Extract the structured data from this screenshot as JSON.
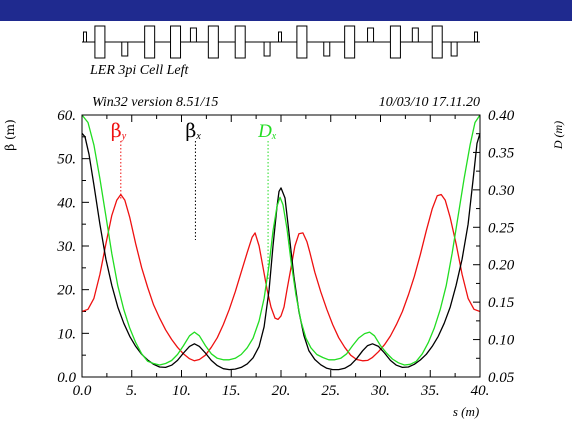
{
  "chart_data": {
    "type": "line",
    "title": "LER 3pi Cell Left",
    "header_left": "Win32 version 8.51/15",
    "header_right": "10/03/10  17.11.20",
    "xlabel": "s (m)",
    "ylabel_left": "β (m)",
    "ylabel_right": "D (m)",
    "xlim": [
      0,
      40
    ],
    "ylim_left": [
      0,
      60
    ],
    "ylim_right": [
      0.05,
      0.4
    ],
    "x_ticks": [
      "0.0",
      "5.",
      "10.",
      "15.",
      "20.",
      "25.",
      "30.",
      "35.",
      "40."
    ],
    "y_ticks_left": [
      "0.0",
      "10.",
      "20.",
      "30.",
      "40.",
      "50.",
      "60."
    ],
    "y_ticks_right": [
      "0.05",
      "0.10",
      "0.15",
      "0.20",
      "0.25",
      "0.30",
      "0.35",
      "0.40"
    ],
    "legend": [
      {
        "symbol": "β",
        "sub": "y",
        "color": "#ee1111",
        "marker_x": 3.9
      },
      {
        "symbol": "β",
        "sub": "x",
        "color": "#000000",
        "marker_x": 11.4
      },
      {
        "symbol": "D",
        "sub": "x",
        "color": "#22dd22",
        "marker_x": 18.7
      }
    ],
    "series": [
      {
        "key": "beta_y",
        "axis": "left",
        "color": "#ee1111",
        "x": [
          0.0,
          0.6,
          1.2,
          1.8,
          2.4,
          3.0,
          3.5,
          3.9,
          4.3,
          4.8,
          5.4,
          6.0,
          6.6,
          7.2,
          7.8,
          8.4,
          9.0,
          9.6,
          10.2,
          10.8,
          11.3,
          11.8,
          12.4,
          13.0,
          13.6,
          14.2,
          14.8,
          15.4,
          16.0,
          16.6,
          17.1,
          17.4,
          17.8,
          18.2,
          18.6,
          19.0,
          19.4,
          19.7,
          20.0,
          20.3,
          20.6,
          21.0,
          21.4,
          21.8,
          22.2,
          22.6,
          22.9,
          23.4,
          24.0,
          24.6,
          25.2,
          25.8,
          26.4,
          27.0,
          27.6,
          28.2,
          28.7,
          29.2,
          29.8,
          30.4,
          31.0,
          31.6,
          32.2,
          32.8,
          33.4,
          34.0,
          34.6,
          35.2,
          35.7,
          36.1,
          36.5,
          37.0,
          37.6,
          38.2,
          38.8,
          39.4,
          40.0
        ],
        "values": [
          15.0,
          15.5,
          18.0,
          23.5,
          30.5,
          37.0,
          40.5,
          41.8,
          40.5,
          36.5,
          30.5,
          25.0,
          20.5,
          16.5,
          13.5,
          10.8,
          8.6,
          6.8,
          5.3,
          4.2,
          3.7,
          4.0,
          5.0,
          6.8,
          9.0,
          12.0,
          15.5,
          19.5,
          24.0,
          28.5,
          32.0,
          33.0,
          30.0,
          25.0,
          20.0,
          16.0,
          13.5,
          13.2,
          14.0,
          16.0,
          20.0,
          25.0,
          30.0,
          32.8,
          33.0,
          31.0,
          28.5,
          24.0,
          19.5,
          15.5,
          12.0,
          9.0,
          6.8,
          5.0,
          4.0,
          3.7,
          3.8,
          4.5,
          5.8,
          7.4,
          9.4,
          12.0,
          15.0,
          18.8,
          23.0,
          28.0,
          33.5,
          38.5,
          41.5,
          41.8,
          40.5,
          36.5,
          30.5,
          23.5,
          18.0,
          15.5,
          15.0
        ]
      },
      {
        "key": "beta_x",
        "axis": "left",
        "color": "#000000",
        "x": [
          0.0,
          0.3,
          0.7,
          1.2,
          1.8,
          2.4,
          3.0,
          3.6,
          4.2,
          4.8,
          5.4,
          6.0,
          6.6,
          7.2,
          7.8,
          8.4,
          9.0,
          9.6,
          10.2,
          10.8,
          11.3,
          11.8,
          12.4,
          13.0,
          13.6,
          14.2,
          14.8,
          15.4,
          16.0,
          16.6,
          17.2,
          17.8,
          18.3,
          18.8,
          19.2,
          19.6,
          19.8,
          20.0,
          20.4,
          20.8,
          21.3,
          21.8,
          22.3,
          22.8,
          23.4,
          24.0,
          24.6,
          25.2,
          25.8,
          26.4,
          27.0,
          27.6,
          28.2,
          28.7,
          29.2,
          29.8,
          30.4,
          31.0,
          31.6,
          32.2,
          32.8,
          33.4,
          34.0,
          34.6,
          35.2,
          35.8,
          36.4,
          37.0,
          37.6,
          38.2,
          38.8,
          39.3,
          39.7,
          40.0
        ],
        "values": [
          55.8,
          55.0,
          51.0,
          44.0,
          35.0,
          27.0,
          21.0,
          16.0,
          12.3,
          9.3,
          7.0,
          5.2,
          3.9,
          2.9,
          2.3,
          2.2,
          2.7,
          3.8,
          5.5,
          7.0,
          7.6,
          7.0,
          5.5,
          3.8,
          2.6,
          1.9,
          1.7,
          1.8,
          2.2,
          3.0,
          4.4,
          7.0,
          11.5,
          20.0,
          30.0,
          39.0,
          42.5,
          43.3,
          41.0,
          33.0,
          23.0,
          15.0,
          9.5,
          6.0,
          4.0,
          2.8,
          2.0,
          1.7,
          1.7,
          2.0,
          2.8,
          4.2,
          6.0,
          7.2,
          7.6,
          7.0,
          5.5,
          3.8,
          2.7,
          2.2,
          2.3,
          2.9,
          3.9,
          5.2,
          7.0,
          9.3,
          12.3,
          16.0,
          21.0,
          27.0,
          35.0,
          45.0,
          53.5,
          55.8
        ]
      },
      {
        "key": "d_x",
        "axis": "right",
        "color": "#22dd22",
        "x": [
          0.0,
          0.6,
          1.2,
          1.8,
          2.4,
          3.0,
          3.6,
          4.2,
          4.8,
          5.4,
          6.0,
          6.6,
          7.2,
          7.8,
          8.4,
          9.0,
          9.6,
          10.2,
          10.8,
          11.3,
          11.8,
          12.4,
          13.0,
          13.6,
          14.2,
          14.8,
          15.4,
          16.0,
          16.6,
          17.2,
          17.8,
          18.3,
          18.8,
          19.2,
          19.6,
          19.9,
          20.2,
          20.6,
          21.0,
          21.5,
          22.0,
          22.5,
          23.0,
          23.6,
          24.2,
          24.8,
          25.4,
          26.0,
          26.6,
          27.2,
          27.8,
          28.4,
          28.9,
          29.4,
          30.0,
          30.6,
          31.2,
          31.8,
          32.4,
          33.0,
          33.6,
          34.2,
          34.8,
          35.4,
          36.0,
          36.6,
          37.2,
          37.8,
          38.4,
          39.0,
          39.5,
          40.0
        ],
        "values": [
          0.4,
          0.39,
          0.36,
          0.315,
          0.265,
          0.215,
          0.172,
          0.14,
          0.115,
          0.096,
          0.081,
          0.071,
          0.068,
          0.066,
          0.068,
          0.072,
          0.08,
          0.092,
          0.105,
          0.11,
          0.105,
          0.092,
          0.081,
          0.075,
          0.073,
          0.073,
          0.075,
          0.08,
          0.089,
          0.102,
          0.125,
          0.155,
          0.2,
          0.245,
          0.278,
          0.29,
          0.28,
          0.248,
          0.205,
          0.16,
          0.125,
          0.102,
          0.089,
          0.08,
          0.076,
          0.073,
          0.073,
          0.075,
          0.081,
          0.092,
          0.102,
          0.108,
          0.11,
          0.105,
          0.092,
          0.082,
          0.074,
          0.069,
          0.066,
          0.067,
          0.071,
          0.081,
          0.096,
          0.115,
          0.14,
          0.172,
          0.215,
          0.265,
          0.315,
          0.36,
          0.39,
          0.4
        ]
      }
    ],
    "lattice_elements": [
      {
        "type": "marker",
        "s": 0.3
      },
      {
        "type": "bend",
        "s": 1.8
      },
      {
        "type": "quad_down",
        "s": 4.3
      },
      {
        "type": "bend",
        "s": 6.8
      },
      {
        "type": "bend",
        "s": 9.4
      },
      {
        "type": "quad_up",
        "s": 11.2
      },
      {
        "type": "bend",
        "s": 13.2
      },
      {
        "type": "bend",
        "s": 15.9
      },
      {
        "type": "quad_down",
        "s": 18.6
      },
      {
        "type": "marker",
        "s": 19.9
      },
      {
        "type": "bend",
        "s": 22.1
      },
      {
        "type": "quad_down",
        "s": 24.6
      },
      {
        "type": "bend",
        "s": 26.9
      },
      {
        "type": "quad_up",
        "s": 29.0
      },
      {
        "type": "bend",
        "s": 31.5
      },
      {
        "type": "quad_up",
        "s": 33.5
      },
      {
        "type": "bend",
        "s": 35.7
      },
      {
        "type": "quad_down",
        "s": 37.4
      },
      {
        "type": "marker",
        "s": 39.6
      }
    ]
  }
}
